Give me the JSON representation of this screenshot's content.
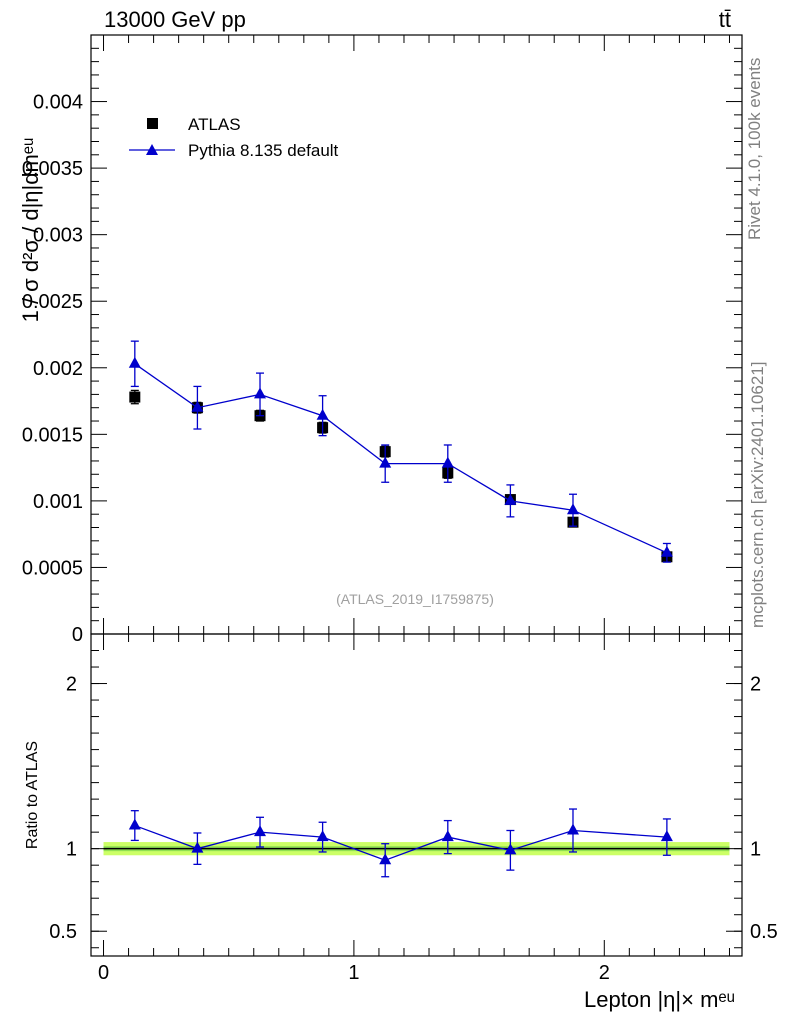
{
  "header": {
    "energy_label": "13000 GeV pp",
    "process_label": "tt̄"
  },
  "side": {
    "rivet": "Rivet 4.1.0,  100k events",
    "source": "mcplots.cern.ch [arXiv:2401.10621]"
  },
  "colors": {
    "mc": "#0000cc",
    "data": "#000000",
    "band_outer": "#ccff66",
    "band_inner": "#66cc44"
  },
  "chart_data": [
    {
      "type": "line",
      "panel": "main",
      "ylabel": "1 / σ  d²σ / d|η|dmᵉᵘ",
      "watermark": "(ATLAS_2019_I1759875)",
      "ylim": [
        0,
        0.0045
      ],
      "xlim": [
        -0.05,
        2.55
      ],
      "yticks": [
        0,
        0.0005,
        0.001,
        0.0015,
        0.002,
        0.0025,
        0.003,
        0.0035,
        0.004
      ],
      "ytick_labels": [
        "0",
        "0.0005",
        "0.001",
        "0.0015",
        "0.002",
        "0.0025",
        "0.003",
        "0.0035",
        "0.004"
      ],
      "legend": {
        "position": "top-left",
        "entries": [
          "ATLAS",
          "Pythia 8.135 default"
        ]
      },
      "series": [
        {
          "name": "ATLAS",
          "marker": "square",
          "x": [
            0.125,
            0.375,
            0.625,
            0.875,
            1.125,
            1.375,
            1.625,
            1.875,
            2.25
          ],
          "y": [
            0.00178,
            0.0017,
            0.00164,
            0.00155,
            0.00137,
            0.00121,
            0.00101,
            0.00084,
            0.00058
          ],
          "err": [
            5e-05,
            4e-05,
            4e-05,
            4e-05,
            4e-05,
            4e-05,
            3e-05,
            3e-05,
            2e-05
          ]
        },
        {
          "name": "Pythia 8.135 default",
          "marker": "triangle",
          "x": [
            0.125,
            0.375,
            0.625,
            0.875,
            1.125,
            1.375,
            1.625,
            1.875,
            2.25
          ],
          "y": [
            0.00203,
            0.0017,
            0.0018,
            0.00164,
            0.00128,
            0.00128,
            0.001,
            0.00093,
            0.00061
          ],
          "err": [
            0.00017,
            0.00016,
            0.00016,
            0.00015,
            0.00014,
            0.00014,
            0.00012,
            0.00012,
            7e-05
          ]
        }
      ]
    },
    {
      "type": "line",
      "panel": "ratio",
      "ylabel": "Ratio to ATLAS",
      "xlabel": "Lepton |η|× mᵉᵘ",
      "ylim": [
        0.35,
        2.3
      ],
      "xlim": [
        -0.05,
        2.55
      ],
      "yticks": [
        0.5,
        1,
        2
      ],
      "ytick_labels": [
        "0.5",
        "1",
        "2"
      ],
      "xticks": [
        0,
        1,
        2
      ],
      "xtick_labels": [
        "0",
        "1",
        "2"
      ],
      "band": {
        "outer": [
          0.96,
          1.04
        ],
        "inner": [
          0.985,
          1.015
        ]
      },
      "series": [
        {
          "name": "Pythia 8.135 default",
          "marker": "triangle",
          "x": [
            0.125,
            0.375,
            0.625,
            0.875,
            1.125,
            1.375,
            1.625,
            1.875,
            2.25
          ],
          "y": [
            1.14,
            1.0,
            1.1,
            1.07,
            0.93,
            1.07,
            0.99,
            1.11,
            1.07
          ],
          "err": [
            0.09,
            0.095,
            0.09,
            0.09,
            0.1,
            0.1,
            0.12,
            0.13,
            0.11
          ]
        }
      ]
    }
  ]
}
